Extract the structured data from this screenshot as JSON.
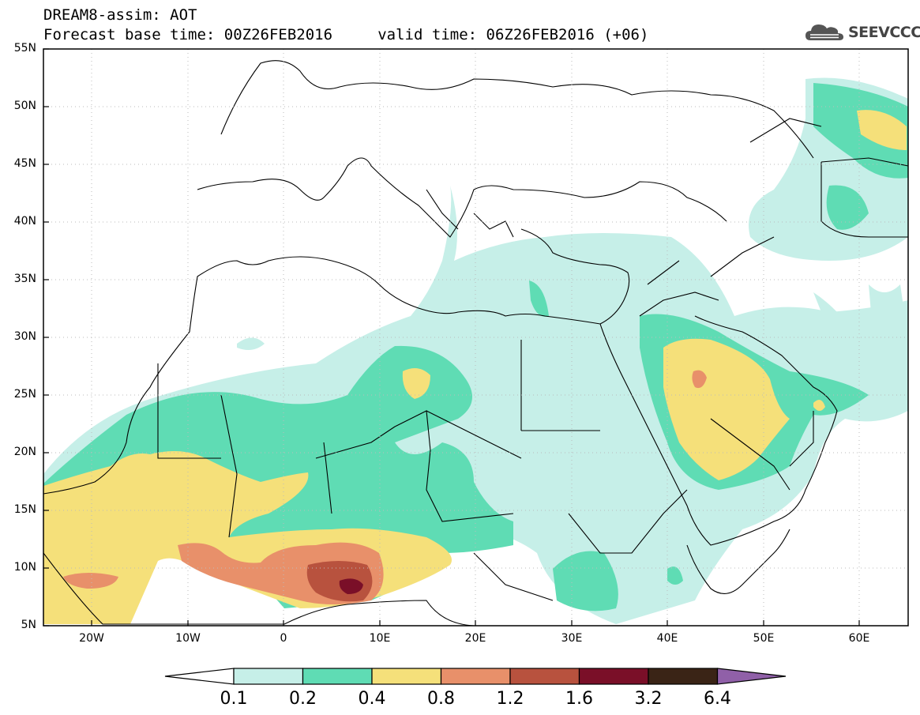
{
  "header": {
    "title_line1": "DREAM8-assim: AOT",
    "title_line2": "Forecast base time: 00Z26FEB2016     valid time: 06Z26FEB2016 (+06)",
    "logo_text": "SEEVCCC"
  },
  "map": {
    "lat_labels": [
      "55N",
      "50N",
      "45N",
      "40N",
      "35N",
      "30N",
      "25N",
      "20N",
      "15N",
      "10N",
      "5N"
    ],
    "lon_labels": [
      "20W",
      "10W",
      "0",
      "10E",
      "20E",
      "30E",
      "40E",
      "50E",
      "60E"
    ]
  },
  "colorbar": {
    "labels": [
      "0.1",
      "0.2",
      "0.4",
      "0.8",
      "1.2",
      "1.6",
      "3.2",
      "6.4"
    ],
    "colors": [
      "#ffffff",
      "#c6efe8",
      "#5fdcb4",
      "#f5e07a",
      "#e8906a",
      "#b8523e",
      "#7a0f28",
      "#3a2416",
      "#9060a8"
    ]
  }
}
